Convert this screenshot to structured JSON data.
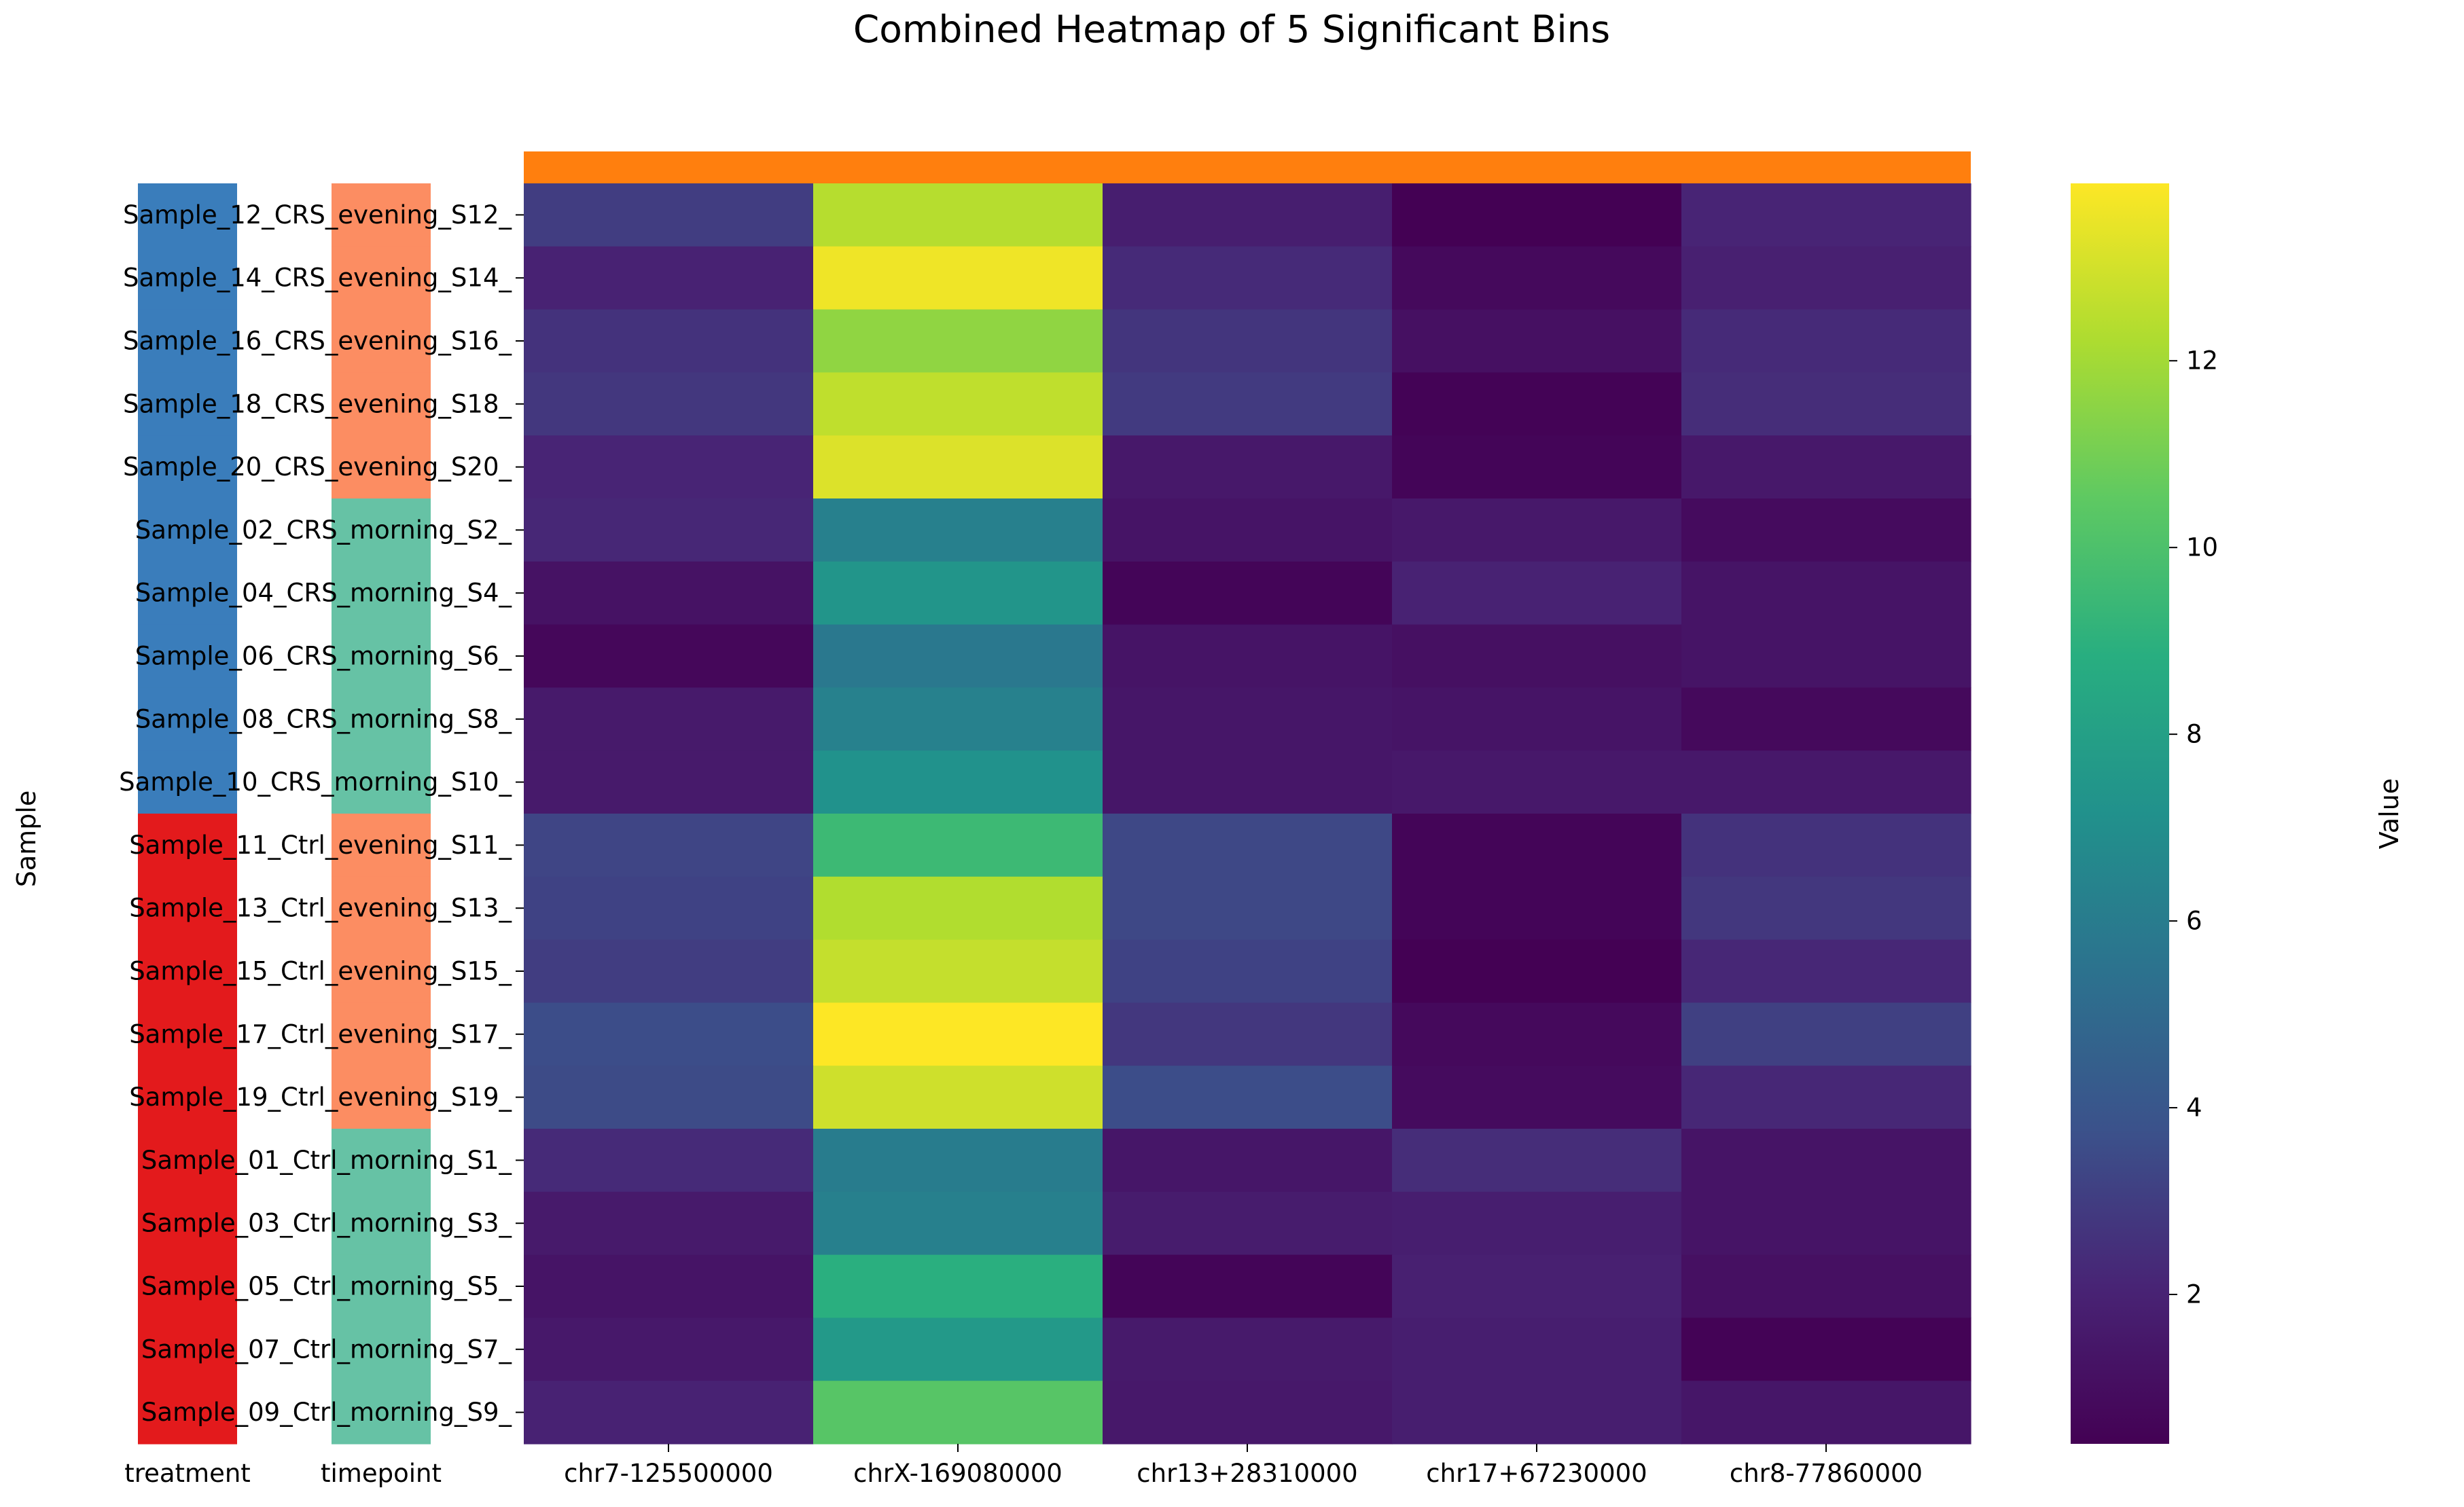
{
  "chart_data": {
    "type": "heatmap",
    "title": "Combined Heatmap of 5 Significant Bins",
    "ylabel": "Sample",
    "colorbar_label": "Value",
    "colormap": "viridis",
    "vmin": 0.4,
    "vmax": 13.9,
    "colorbar_ticks": [
      "2",
      "4",
      "6",
      "8",
      "10",
      "12"
    ],
    "column_group_color": "#ff7f0e",
    "columns": [
      "chr7-125500000",
      "chrX-169080000",
      "chr13+28310000",
      "chr17+67230000",
      "chr8-77860000"
    ],
    "annotation_headers": [
      "treatment",
      "timepoint"
    ],
    "annotation_colors": {
      "CRS": "#3a7dbb",
      "Ctrl": "#e31a1c",
      "evening": "#fc8d62",
      "morning": "#66c2a5"
    },
    "rows": [
      {
        "label": "Sample_12_CRS_evening_S12_",
        "treatment": "CRS",
        "timepoint": "evening",
        "values": [
          3.0,
          12.4,
          1.8,
          0.4,
          2.1
        ]
      },
      {
        "label": "Sample_14_CRS_evening_S14_",
        "treatment": "CRS",
        "timepoint": "evening",
        "values": [
          2.0,
          13.6,
          2.3,
          0.8,
          1.9
        ]
      },
      {
        "label": "Sample_16_CRS_evening_S16_",
        "treatment": "CRS",
        "timepoint": "evening",
        "values": [
          2.6,
          11.6,
          2.7,
          1.1,
          2.3
        ]
      },
      {
        "label": "Sample_18_CRS_evening_S18_",
        "treatment": "CRS",
        "timepoint": "evening",
        "values": [
          2.8,
          12.6,
          2.9,
          0.5,
          2.4
        ]
      },
      {
        "label": "Sample_20_CRS_evening_S20_",
        "treatment": "CRS",
        "timepoint": "evening",
        "values": [
          2.1,
          13.2,
          1.5,
          0.6,
          1.5
        ]
      },
      {
        "label": "Sample_02_CRS_morning_S2_",
        "treatment": "CRS",
        "timepoint": "morning",
        "values": [
          2.2,
          6.2,
          1.3,
          1.5,
          0.9
        ]
      },
      {
        "label": "Sample_04_CRS_morning_S4_",
        "treatment": "CRS",
        "timepoint": "morning",
        "values": [
          1.2,
          7.4,
          0.6,
          2.0,
          1.3
        ]
      },
      {
        "label": "Sample_06_CRS_morning_S6_",
        "treatment": "CRS",
        "timepoint": "morning",
        "values": [
          0.7,
          5.8,
          1.3,
          1.1,
          1.3
        ]
      },
      {
        "label": "Sample_08_CRS_morning_S8_",
        "treatment": "CRS",
        "timepoint": "morning",
        "values": [
          1.6,
          6.3,
          1.4,
          1.3,
          0.8
        ]
      },
      {
        "label": "Sample_10_CRS_morning_S10_",
        "treatment": "CRS",
        "timepoint": "morning",
        "values": [
          1.6,
          7.2,
          1.4,
          1.5,
          1.5
        ]
      },
      {
        "label": "Sample_11_Ctrl_evening_S11_",
        "treatment": "Ctrl",
        "timepoint": "evening",
        "values": [
          3.3,
          9.5,
          3.4,
          0.6,
          2.6
        ]
      },
      {
        "label": "Sample_13_Ctrl_evening_S13_",
        "treatment": "Ctrl",
        "timepoint": "evening",
        "values": [
          3.2,
          12.3,
          3.4,
          0.6,
          2.8
        ]
      },
      {
        "label": "Sample_15_Ctrl_evening_S15_",
        "treatment": "Ctrl",
        "timepoint": "evening",
        "values": [
          3.0,
          12.7,
          3.2,
          0.4,
          2.2
        ]
      },
      {
        "label": "Sample_17_Ctrl_evening_S17_",
        "treatment": "Ctrl",
        "timepoint": "evening",
        "values": [
          3.6,
          13.9,
          2.8,
          0.8,
          3.1
        ]
      },
      {
        "label": "Sample_19_Ctrl_evening_S19_",
        "treatment": "Ctrl",
        "timepoint": "evening",
        "values": [
          3.5,
          12.9,
          3.6,
          0.9,
          2.2
        ]
      },
      {
        "label": "Sample_01_Ctrl_morning_S1_",
        "treatment": "Ctrl",
        "timepoint": "morning",
        "values": [
          2.3,
          6.0,
          1.4,
          2.4,
          1.3
        ]
      },
      {
        "label": "Sample_03_Ctrl_morning_S3_",
        "treatment": "Ctrl",
        "timepoint": "morning",
        "values": [
          1.6,
          6.2,
          1.7,
          1.8,
          1.3
        ]
      },
      {
        "label": "Sample_05_Ctrl_morning_S5_",
        "treatment": "Ctrl",
        "timepoint": "morning",
        "values": [
          1.3,
          8.9,
          0.6,
          1.9,
          1.1
        ]
      },
      {
        "label": "Sample_07_Ctrl_morning_S7_",
        "treatment": "Ctrl",
        "timepoint": "morning",
        "values": [
          1.5,
          7.6,
          1.6,
          1.8,
          0.5
        ]
      },
      {
        "label": "Sample_09_Ctrl_morning_S9_",
        "treatment": "Ctrl",
        "timepoint": "morning",
        "values": [
          2.0,
          10.3,
          1.5,
          1.8,
          1.4
        ]
      }
    ]
  }
}
